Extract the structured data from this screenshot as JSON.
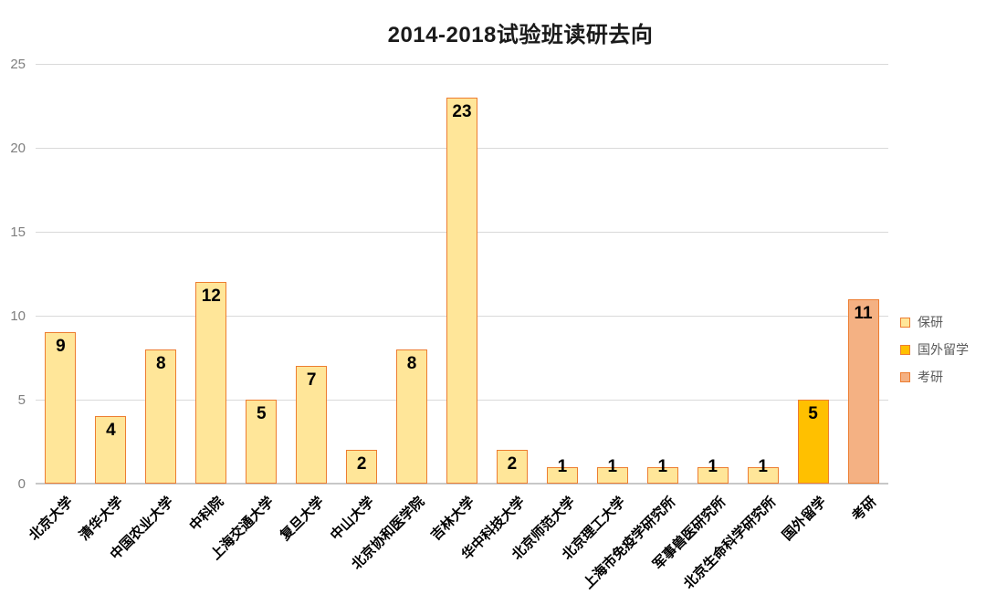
{
  "title": "2014-2018试验班读研去向",
  "chart_data": {
    "type": "bar",
    "title": "2014-2018试验班读研去向",
    "categories": [
      "北京大学",
      "清华大学",
      "中国农业大学",
      "中科院",
      "上海交通大学",
      "复旦大学",
      "中山大学",
      "北京协和医学院",
      "吉林大学",
      "华中科技大学",
      "北京师范大学",
      "北京理工大学",
      "上海市免疫学研究所",
      "军事兽医研究所",
      "北京生命科学研究所",
      "国外留学",
      "考研"
    ],
    "values": [
      9,
      4,
      8,
      12,
      5,
      7,
      2,
      8,
      23,
      2,
      1,
      1,
      1,
      1,
      1,
      5,
      11
    ],
    "bar_series": [
      0,
      0,
      0,
      0,
      0,
      0,
      0,
      0,
      0,
      0,
      0,
      0,
      0,
      0,
      0,
      1,
      2
    ],
    "xlabel": "",
    "ylabel": "",
    "ylim": [
      0,
      25
    ],
    "yticks": [
      0,
      5,
      10,
      15,
      20,
      25
    ],
    "grid": true,
    "value_labels": true,
    "legend": {
      "position": "right",
      "entries": [
        {
          "label": "保研",
          "fill": "#FFE699",
          "border": "#ED7D31"
        },
        {
          "label": "国外留学",
          "fill": "#FFC000",
          "border": "#ED7D31"
        },
        {
          "label": "考研",
          "fill": "#F4B183",
          "border": "#ED7D31"
        }
      ]
    }
  },
  "colors": {
    "gridline": "#D9D9D9",
    "axis_line": "#C8C8C8",
    "tick_label": "#7F7F7F",
    "legend_text": "#595959",
    "bar_border": "#ED7D31",
    "title_text": "#1A1A1A",
    "background": "#FFFFFF"
  }
}
